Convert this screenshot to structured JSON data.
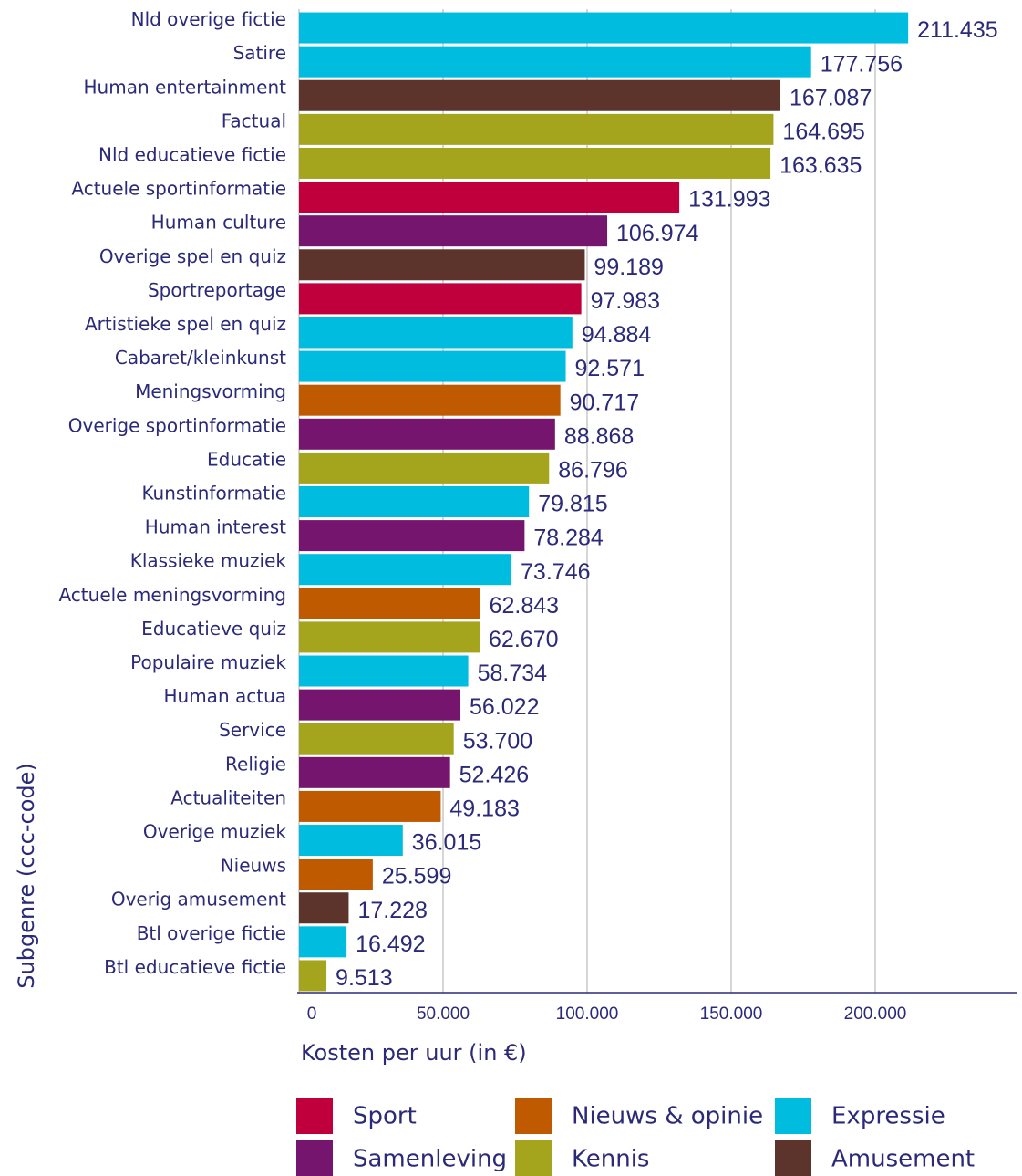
{
  "chart_data": {
    "type": "bar",
    "orientation": "horizontal",
    "xlabel": "Kosten per uur (in €)",
    "ylabel": "Subgenre (ccc-code)",
    "categories": [
      "Nld overige fictie",
      "Satire",
      "Human entertainment",
      "Factual",
      "Nld educatieve fictie",
      "Actuele sportinformatie",
      "Human culture",
      "Overige spel en quiz",
      "Sportreportage",
      "Artistieke spel en quiz",
      "Cabaret/kleinkunst",
      "Meningsvorming",
      "Overige sportinformatie",
      "Educatie",
      "Kunstinformatie",
      "Human interest",
      "Klassieke muziek",
      "Actuele meningsvorming",
      "Educatieve quiz",
      "Populaire muziek",
      "Human actua",
      "Service",
      "Religie",
      "Actualiteiten",
      "Overige muziek",
      "Nieuws",
      "Overig amusement",
      "Btl overige fictie",
      "Btl educatieve fictie"
    ],
    "values": [
      211435,
      177756,
      167087,
      164695,
      163635,
      131993,
      106974,
      99189,
      97983,
      94884,
      92571,
      90717,
      88868,
      86796,
      79815,
      78284,
      73746,
      62843,
      62670,
      58734,
      56022,
      53700,
      52426,
      49183,
      36015,
      25599,
      17228,
      16492,
      9513
    ],
    "value_labels": [
      "211.435",
      "177.756",
      "167.087",
      "164.695",
      "163.635",
      "131.993",
      "106.974",
      "99.189",
      "97.983",
      "94.884",
      "92.571",
      "90.717",
      "88.868",
      "86.796",
      "79.815",
      "78.284",
      "73.746",
      "62.843",
      "62.670",
      "58.734",
      "56.022",
      "53.700",
      "52.426",
      "49.183",
      "36.015",
      "25.599",
      "17.228",
      "16.492",
      "9.513"
    ],
    "colors": [
      "#00bde0",
      "#00bde0",
      "#5c342c",
      "#a4a51d",
      "#a4a51d",
      "#c0003c",
      "#76156e",
      "#5c342c",
      "#c0003c",
      "#00bde0",
      "#00bde0",
      "#c05a00",
      "#76156e",
      "#a4a51d",
      "#00bde0",
      "#76156e",
      "#00bde0",
      "#c05a00",
      "#a4a51d",
      "#00bde0",
      "#76156e",
      "#a4a51d",
      "#76156e",
      "#c05a00",
      "#00bde0",
      "#c05a00",
      "#5c342c",
      "#00bde0",
      "#a4a51d"
    ],
    "xlim": [
      0,
      250000
    ],
    "xticks": [
      0,
      {
        "value": 50000,
        "label": "50.000"
      },
      {
        "value": 100000,
        "label": "100.000"
      },
      {
        "value": 150000,
        "label": "150.000"
      },
      {
        "value": 200000,
        "label": "200.000"
      }
    ],
    "grid": true,
    "legend": [
      {
        "name": "Sport",
        "color": "#c0003c"
      },
      {
        "name": "Nieuws & opinie",
        "color": "#c05a00"
      },
      {
        "name": "Expressie",
        "color": "#00bde0"
      },
      {
        "name": "Samenleving",
        "color": "#76156e"
      },
      {
        "name": "Kennis",
        "color": "#a4a51d"
      },
      {
        "name": "Amusement",
        "color": "#5c342c"
      }
    ]
  }
}
